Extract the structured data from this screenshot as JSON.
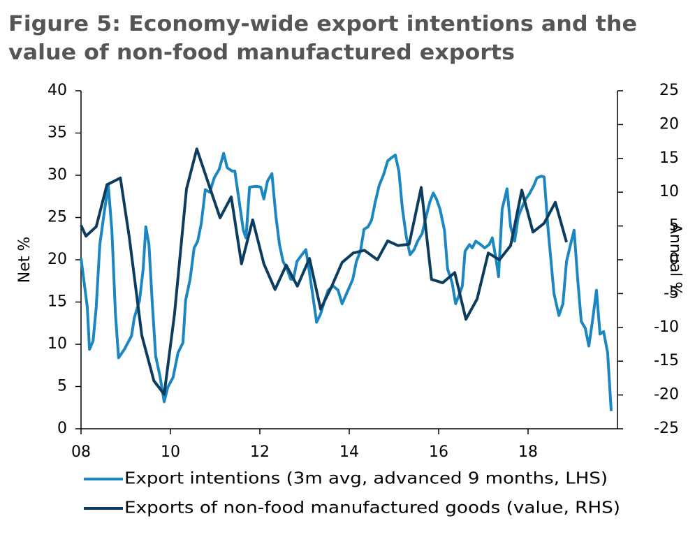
{
  "chart_data": {
    "type": "line",
    "title": [
      "Figure 5: Economy-wide export intentions and the",
      "value of non-food manufactured exports"
    ],
    "ylabel": "Net %",
    "y2label": "Annual %",
    "xlim": [
      8,
      20
    ],
    "xticks": [
      {
        "value": 8,
        "label": "08"
      },
      10,
      12,
      14,
      16,
      18
    ],
    "ylim": [
      0,
      40
    ],
    "yticks": [
      0,
      5,
      10,
      15,
      20,
      25,
      30,
      35,
      40
    ],
    "y2lim": [
      -25,
      25
    ],
    "y2ticks": [
      -25,
      -20,
      -15,
      -10,
      -5,
      0,
      5,
      10,
      15,
      20,
      25
    ],
    "series": [
      {
        "name": "Export intentions (3m avg, advanced 9 months, LHS)",
        "color": "#1a87c2",
        "x": [
          8.0,
          8.14,
          8.19,
          8.27,
          8.34,
          8.42,
          8.53,
          8.61,
          8.69,
          8.77,
          8.84,
          8.97,
          9.13,
          9.19,
          9.31,
          9.39,
          9.45,
          9.52,
          9.59,
          9.67,
          9.77,
          9.86,
          9.94,
          10.06,
          10.17,
          10.28,
          10.34,
          10.44,
          10.53,
          10.61,
          10.69,
          10.78,
          10.88,
          10.98,
          11.09,
          11.19,
          11.27,
          11.38,
          11.44,
          11.52,
          11.63,
          11.69,
          11.77,
          11.91,
          12.02,
          12.09,
          12.17,
          12.27,
          12.36,
          12.44,
          12.52,
          12.61,
          12.69,
          12.75,
          12.83,
          12.94,
          13.03,
          13.11,
          13.2,
          13.27,
          13.36,
          13.45,
          13.53,
          13.64,
          13.75,
          13.84,
          13.94,
          14.08,
          14.16,
          14.25,
          14.33,
          14.42,
          14.5,
          14.58,
          14.67,
          14.77,
          14.86,
          14.95,
          15.03,
          15.11,
          15.19,
          15.28,
          15.36,
          15.45,
          15.53,
          15.63,
          15.7,
          15.8,
          15.88,
          15.95,
          16.03,
          16.13,
          16.2,
          16.3,
          16.38,
          16.47,
          16.53,
          16.59,
          16.69,
          16.75,
          16.83,
          16.94,
          17.03,
          17.13,
          17.2,
          17.28,
          17.34,
          17.42,
          17.53,
          17.61,
          17.7,
          17.78,
          17.88,
          17.95,
          18.03,
          18.13,
          18.2,
          18.3,
          18.36,
          18.45,
          18.58,
          18.69,
          18.78,
          18.86,
          18.95,
          19.03,
          19.11,
          19.19,
          19.28,
          19.36,
          19.44,
          19.53,
          19.61,
          19.69,
          19.78,
          19.86
        ],
        "values": [
          20.2,
          14.4,
          9.4,
          10.4,
          14.4,
          21.8,
          26,
          28.8,
          23.5,
          13.6,
          8.4,
          9.4,
          11,
          13.1,
          15.2,
          18.9,
          23.9,
          21.8,
          15.2,
          8.6,
          6.1,
          3.2,
          4.9,
          6.1,
          9,
          10.2,
          15.2,
          17.7,
          21.4,
          22.2,
          24.3,
          28.3,
          28,
          29.7,
          30.7,
          32.6,
          30.9,
          30.5,
          30.5,
          27.6,
          23.5,
          22.6,
          28.6,
          28.7,
          28.6,
          27.2,
          29.3,
          30.2,
          25.1,
          21.8,
          19.8,
          18.9,
          17.7,
          17.7,
          19.8,
          20.6,
          21.2,
          18.5,
          15.2,
          12.6,
          13.6,
          15.2,
          16.4,
          16.9,
          16.4,
          14.8,
          16,
          17.7,
          19.8,
          21,
          23.6,
          23.9,
          24.7,
          26.8,
          28.8,
          30.1,
          31.7,
          32.1,
          32.4,
          30.5,
          26,
          22.6,
          20.6,
          21.2,
          22.2,
          23.1,
          24.7,
          26.8,
          27.9,
          27.2,
          26,
          23.5,
          18.9,
          17.3,
          14.8,
          16,
          16.9,
          21,
          21.8,
          21.4,
          22.2,
          21.8,
          21.4,
          21.8,
          22.6,
          20.2,
          18,
          26,
          28.4,
          23.9,
          22.2,
          25.1,
          26.4,
          27.2,
          27.8,
          28.8,
          29.7,
          29.9,
          29.8,
          23.5,
          16,
          13.4,
          14.8,
          19.8,
          21.8,
          23.5,
          17.7,
          12.7,
          11.9,
          9.8,
          12.7,
          16.4,
          11.2,
          11.5,
          9,
          2.1
        ]
      },
      {
        "name": "Exports of non-food manufactured goods (value, RHS)",
        "color": "#0c3c5e",
        "axis": "y2",
        "x": [
          8.0,
          8.11,
          8.34,
          8.58,
          8.88,
          9.08,
          9.36,
          9.63,
          9.86,
          10.09,
          10.36,
          10.59,
          10.86,
          11.11,
          11.36,
          11.59,
          11.84,
          12.09,
          12.34,
          12.59,
          12.84,
          13.11,
          13.36,
          13.61,
          13.84,
          14.09,
          14.34,
          14.63,
          14.86,
          15.09,
          15.34,
          15.61,
          15.84,
          16.09,
          16.36,
          16.61,
          16.86,
          17.11,
          17.36,
          17.61,
          17.86,
          18.11,
          18.36,
          18.61,
          18.86
        ],
        "values": [
          5.1,
          3.5,
          4.9,
          11.1,
          12.1,
          3.3,
          -11.2,
          -17.9,
          -19.9,
          -8.1,
          10.5,
          16.4,
          11.1,
          6.2,
          9.3,
          -0.6,
          5.9,
          -0.6,
          -4.4,
          -0.8,
          -3.9,
          0.2,
          -7.3,
          -3.9,
          -0.4,
          1.0,
          1.4,
          0,
          2.8,
          2.1,
          2.3,
          10.7,
          -2.9,
          -3.4,
          -1.9,
          -8.8,
          -5.8,
          1.0,
          0,
          2.1,
          10.3,
          4.1,
          5.4,
          8.5,
          2.6
        ]
      }
    ]
  }
}
